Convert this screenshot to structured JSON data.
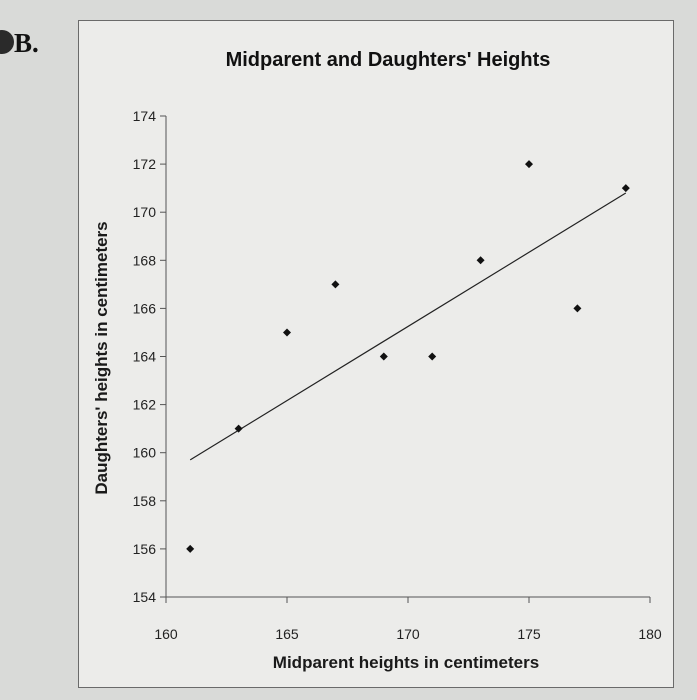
{
  "question": {
    "option_letter": "B."
  },
  "chart_data": {
    "type": "scatter",
    "title": "Midparent and Daughters' Heights",
    "xlabel": "Midparent heights in centimeters",
    "ylabel": "Daughters' heights in centimeters",
    "xlim": [
      160,
      180
    ],
    "ylim": [
      154,
      174
    ],
    "xticks": [
      160,
      165,
      170,
      175,
      180
    ],
    "yticks": [
      154,
      156,
      158,
      160,
      162,
      164,
      166,
      168,
      170,
      172,
      174
    ],
    "grid": false,
    "points": [
      {
        "x": 161,
        "y": 156
      },
      {
        "x": 163,
        "y": 161
      },
      {
        "x": 165,
        "y": 165
      },
      {
        "x": 167,
        "y": 167
      },
      {
        "x": 169,
        "y": 164
      },
      {
        "x": 171,
        "y": 164
      },
      {
        "x": 173,
        "y": 168
      },
      {
        "x": 175,
        "y": 172
      },
      {
        "x": 177,
        "y": 166
      },
      {
        "x": 179,
        "y": 171
      }
    ],
    "trendline": {
      "x": [
        161,
        179
      ],
      "y": [
        159.7,
        170.8
      ]
    },
    "colors": {
      "points": "#111111",
      "line": "#222222",
      "background": "#ececea"
    }
  }
}
